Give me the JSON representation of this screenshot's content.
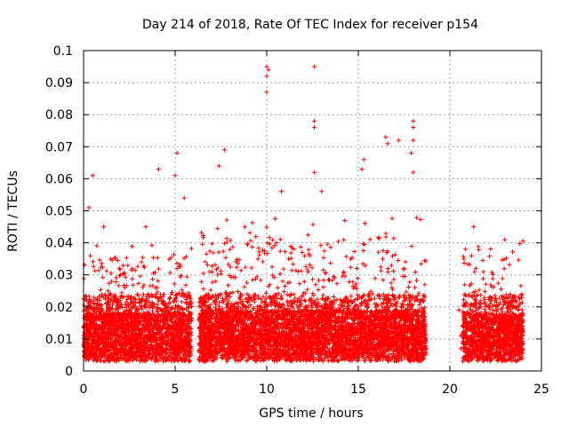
{
  "chart_data": {
    "type": "scatter",
    "title": "Day 214 of 2018, Rate Of TEC Index for receiver p154",
    "xlabel": "GPS time / hours",
    "ylabel": "ROTI / TECUs",
    "xlim": [
      0,
      25
    ],
    "ylim": [
      0,
      0.1
    ],
    "x_ticks": [
      "0",
      "5",
      "10",
      "15",
      "20",
      "25"
    ],
    "y_ticks": [
      "0",
      "0.01",
      "0.02",
      "0.03",
      "0.04",
      "0.05",
      "0.06",
      "0.07",
      "0.08",
      "0.09",
      "0.1"
    ],
    "grid": true,
    "legend": "none",
    "marker": "plus",
    "color": "#ff0000",
    "segments": [
      {
        "x_start": 0.0,
        "x_end": 5.9,
        "base": 0.009,
        "peak": 0.034
      },
      {
        "x_start": 6.3,
        "x_end": 18.7,
        "base": 0.01,
        "peak": 0.04
      },
      {
        "x_start": 20.7,
        "x_end": 24.0,
        "base": 0.009,
        "peak": 0.034
      }
    ],
    "outliers": [
      {
        "x": 0.5,
        "y": 0.061
      },
      {
        "x": 0.3,
        "y": 0.051
      },
      {
        "x": 1.1,
        "y": 0.045
      },
      {
        "x": 3.4,
        "y": 0.045
      },
      {
        "x": 4.1,
        "y": 0.063
      },
      {
        "x": 5.0,
        "y": 0.061
      },
      {
        "x": 5.1,
        "y": 0.068
      },
      {
        "x": 5.5,
        "y": 0.054
      },
      {
        "x": 7.4,
        "y": 0.064
      },
      {
        "x": 7.7,
        "y": 0.069
      },
      {
        "x": 10.0,
        "y": 0.095
      },
      {
        "x": 10.0,
        "y": 0.092
      },
      {
        "x": 10.0,
        "y": 0.087
      },
      {
        "x": 10.1,
        "y": 0.094
      },
      {
        "x": 10.8,
        "y": 0.056
      },
      {
        "x": 12.6,
        "y": 0.095
      },
      {
        "x": 12.6,
        "y": 0.078
      },
      {
        "x": 12.6,
        "y": 0.076
      },
      {
        "x": 12.6,
        "y": 0.062
      },
      {
        "x": 13.0,
        "y": 0.056
      },
      {
        "x": 15.2,
        "y": 0.063
      },
      {
        "x": 15.3,
        "y": 0.066
      },
      {
        "x": 16.5,
        "y": 0.073
      },
      {
        "x": 16.6,
        "y": 0.071
      },
      {
        "x": 17.2,
        "y": 0.072
      },
      {
        "x": 18.0,
        "y": 0.078
      },
      {
        "x": 18.0,
        "y": 0.076
      },
      {
        "x": 18.0,
        "y": 0.072
      },
      {
        "x": 18.0,
        "y": 0.062
      },
      {
        "x": 17.9,
        "y": 0.068
      },
      {
        "x": 21.3,
        "y": 0.045
      },
      {
        "x": 23.0,
        "y": 0.041
      },
      {
        "x": 20.6,
        "y": 0.011
      },
      {
        "x": 20.5,
        "y": 0.019
      },
      {
        "x": 20.6,
        "y": 0.007
      }
    ]
  }
}
